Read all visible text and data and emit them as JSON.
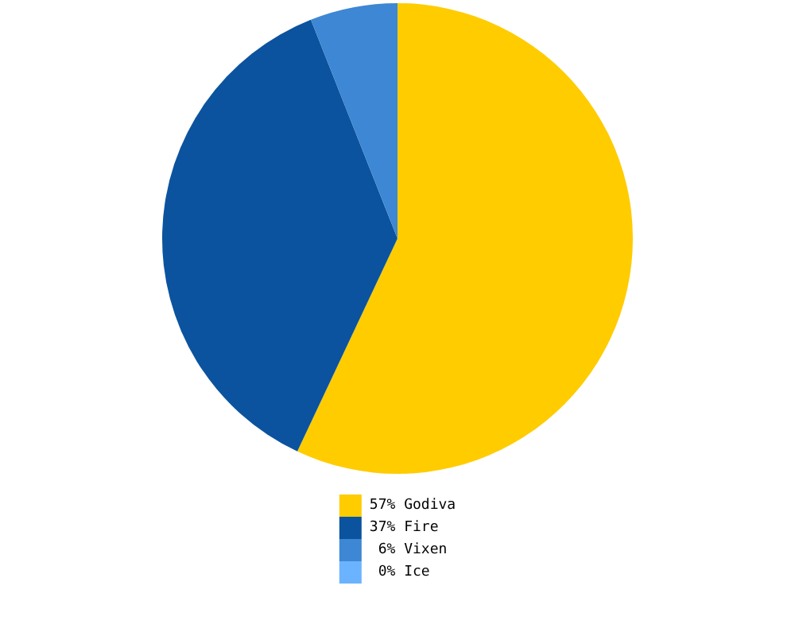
{
  "chart_data": {
    "type": "pie",
    "categories": [
      "Godiva",
      "Fire",
      "Vixen",
      "Ice"
    ],
    "values": [
      57,
      37,
      6,
      0
    ],
    "value_labels": [
      "57%",
      "37%",
      "6%",
      "0%"
    ],
    "colors": [
      "#ffcc00",
      "#0b539e",
      "#3d87d4",
      "#6bb3ff"
    ],
    "legend": "bottom"
  }
}
